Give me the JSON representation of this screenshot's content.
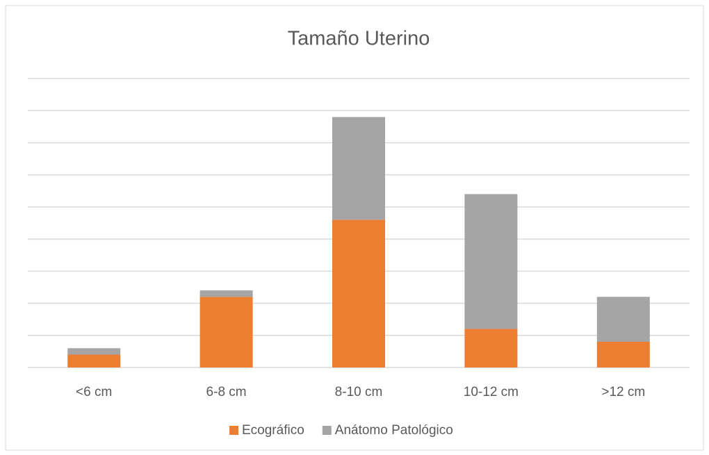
{
  "chart_data": {
    "type": "stacked_bar",
    "title": "Tamaño Uterino",
    "categories": [
      "<6 cm",
      "6-8 cm",
      "8-10 cm",
      "10-12 cm",
      ">12 cm"
    ],
    "series": [
      {
        "name": "Ecográfico",
        "color": "#ed7d31",
        "values": [
          0.4,
          2.2,
          4.6,
          1.2,
          0.8
        ]
      },
      {
        "name": "Anátomo Patológico",
        "color": "#a5a5a5",
        "values": [
          0.2,
          0.2,
          3.2,
          4.2,
          1.4
        ]
      }
    ],
    "ylim": [
      0,
      9
    ],
    "yticks": [
      0,
      1,
      2,
      3,
      4,
      5,
      6,
      7,
      8,
      9
    ],
    "grid": true,
    "legend": "bottom"
  }
}
